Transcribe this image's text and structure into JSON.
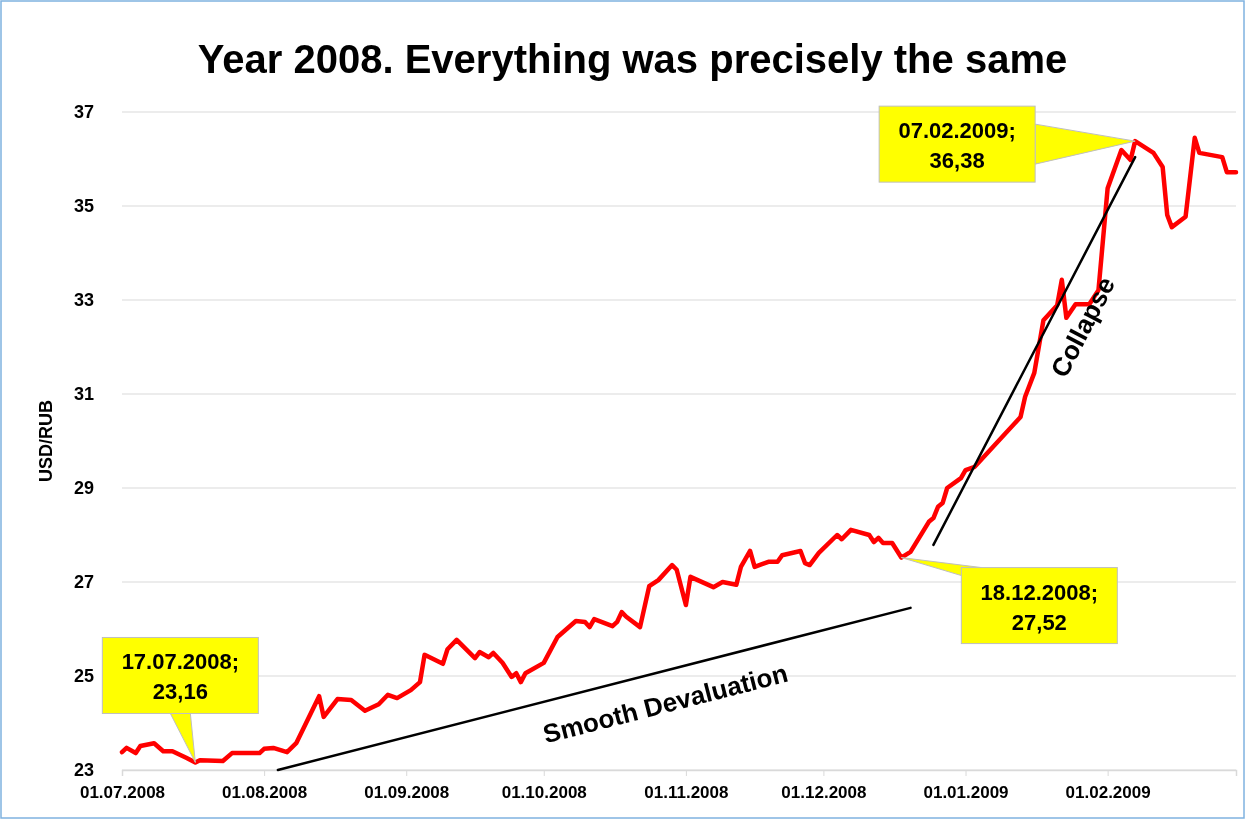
{
  "chart_data": {
    "type": "line",
    "title": "Year 2008. Everything was precisely the same",
    "ylabel": "USD/RUB",
    "xlim": [
      "2008-07-01",
      "2009-03-01"
    ],
    "xticks": [
      {
        "value": "2008-07-01",
        "label": "01.07.2008"
      },
      {
        "value": "2008-08-01",
        "label": "01.08.2008"
      },
      {
        "value": "2008-09-01",
        "label": "01.09.2008"
      },
      {
        "value": "2008-10-01",
        "label": "01.10.2008"
      },
      {
        "value": "2008-11-01",
        "label": "01.11.2008"
      },
      {
        "value": "2008-12-01",
        "label": "01.12.2008"
      },
      {
        "value": "2009-01-01",
        "label": "01.01.2009"
      },
      {
        "value": "2009-02-01",
        "label": "01.02.2009"
      }
    ],
    "ylim": [
      23,
      37
    ],
    "yticks": [
      23,
      25,
      27,
      29,
      31,
      33,
      35,
      37
    ],
    "grid": "y",
    "series": [
      {
        "color": "#ff0000",
        "x": [
          "2008-07-01",
          "2008-07-02",
          "2008-07-04",
          "2008-07-05",
          "2008-07-08",
          "2008-07-10",
          "2008-07-12",
          "2008-07-15",
          "2008-07-17",
          "2008-07-18",
          "2008-07-23",
          "2008-07-25",
          "2008-07-31",
          "2008-08-01",
          "2008-08-03",
          "2008-08-06",
          "2008-08-08",
          "2008-08-13",
          "2008-08-14",
          "2008-08-17",
          "2008-08-20",
          "2008-08-23",
          "2008-08-26",
          "2008-08-28",
          "2008-08-30",
          "2008-09-02",
          "2008-09-04",
          "2008-09-05",
          "2008-09-09",
          "2008-09-10",
          "2008-09-12",
          "2008-09-16",
          "2008-09-17",
          "2008-09-19",
          "2008-09-20",
          "2008-09-22",
          "2008-09-24",
          "2008-09-25",
          "2008-09-26",
          "2008-09-27",
          "2008-10-01",
          "2008-10-04",
          "2008-10-08",
          "2008-10-10",
          "2008-10-11",
          "2008-10-12",
          "2008-10-16",
          "2008-10-17",
          "2008-10-18",
          "2008-10-19",
          "2008-10-22",
          "2008-10-24",
          "2008-10-26",
          "2008-10-29",
          "2008-10-30",
          "2008-11-01",
          "2008-11-02",
          "2008-11-07",
          "2008-11-09",
          "2008-11-12",
          "2008-11-13",
          "2008-11-15",
          "2008-11-16",
          "2008-11-19",
          "2008-11-21",
          "2008-11-22",
          "2008-11-26",
          "2008-11-27",
          "2008-11-28",
          "2008-11-30",
          "2008-12-04",
          "2008-12-05",
          "2008-12-07",
          "2008-12-11",
          "2008-12-12",
          "2008-12-13",
          "2008-12-14",
          "2008-12-16",
          "2008-12-18",
          "2008-12-20",
          "2008-12-24",
          "2008-12-25",
          "2008-12-26",
          "2008-12-27",
          "2008-12-28",
          "2008-12-31",
          "2009-01-01",
          "2009-01-03",
          "2009-01-13",
          "2009-01-14",
          "2009-01-16",
          "2009-01-18",
          "2009-01-21",
          "2009-01-22",
          "2009-01-23",
          "2009-01-25",
          "2009-01-28",
          "2009-01-29",
          "2009-01-30",
          "2009-02-01",
          "2009-02-04",
          "2009-02-06",
          "2009-02-07",
          "2009-02-11",
          "2009-02-13",
          "2009-02-14",
          "2009-02-15",
          "2009-02-18",
          "2009-02-20",
          "2009-02-21",
          "2009-02-26",
          "2009-02-27",
          "2009-03-01"
        ],
        "values": [
          23.38,
          23.47,
          23.36,
          23.51,
          23.57,
          23.4,
          23.4,
          23.26,
          23.16,
          23.21,
          23.19,
          23.36,
          23.36,
          23.45,
          23.47,
          23.38,
          23.57,
          24.57,
          24.13,
          24.51,
          24.49,
          24.26,
          24.4,
          24.6,
          24.53,
          24.7,
          24.87,
          25.45,
          25.26,
          25.57,
          25.77,
          25.38,
          25.51,
          25.4,
          25.49,
          25.28,
          24.98,
          25.06,
          24.87,
          25.06,
          25.28,
          25.83,
          26.17,
          26.15,
          26.04,
          26.21,
          26.06,
          26.15,
          26.36,
          26.26,
          26.04,
          26.91,
          27.04,
          27.36,
          27.26,
          26.51,
          27.11,
          26.89,
          27.0,
          26.94,
          27.32,
          27.66,
          27.32,
          27.43,
          27.43,
          27.57,
          27.66,
          27.4,
          27.36,
          27.62,
          28.0,
          27.91,
          28.11,
          28.0,
          27.85,
          27.94,
          27.83,
          27.83,
          27.52,
          27.64,
          28.28,
          28.36,
          28.6,
          28.68,
          29.0,
          29.21,
          29.38,
          29.45,
          30.51,
          30.94,
          31.45,
          32.57,
          32.89,
          33.43,
          32.62,
          32.91,
          32.91,
          33.06,
          33.21,
          35.38,
          36.19,
          35.98,
          36.38,
          36.13,
          35.83,
          34.81,
          34.55,
          34.77,
          36.45,
          36.13,
          36.04,
          35.72,
          35.72
        ]
      },
      {
        "name": "Smooth Devaluation",
        "color": "#000000",
        "x": [
          "2008-08-04",
          "2008-12-20"
        ],
        "values": [
          23.0,
          26.45
        ]
      },
      {
        "name": "Collapse",
        "color": "#000000",
        "x": [
          "2008-12-25",
          "2009-02-07"
        ],
        "values": [
          27.79,
          36.04
        ]
      }
    ],
    "annotations": [
      {
        "text": "17.07.2008;\n23,16",
        "x": "2008-07-17",
        "y": 23.16
      },
      {
        "text": "18.12.2008;\n27,52",
        "x": "2008-12-18",
        "y": 27.52
      },
      {
        "text": "07.02.2009;\n36,38",
        "x": "2009-02-07",
        "y": 36.38
      }
    ]
  }
}
